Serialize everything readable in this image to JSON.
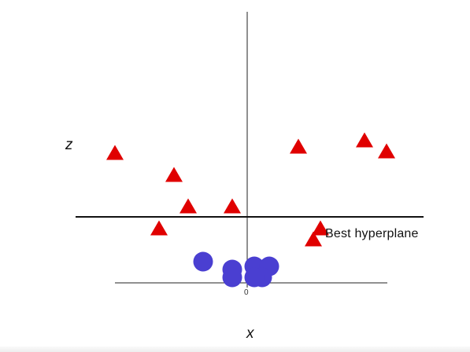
{
  "labels": {
    "z_axis": "z",
    "x_axis": "x",
    "hyperplane": "Best hyperplane",
    "origin_tick": "0"
  },
  "colors": {
    "triangle": "#e00000",
    "circle": "#4a3fd1",
    "axis": "#222222",
    "hyperplane": "#111111"
  },
  "chart_data": {
    "type": "scatter",
    "series": [
      {
        "shape": "triangle",
        "points": [
          [
            -168,
            166
          ],
          [
            -93,
            138
          ],
          [
            -75,
            98
          ],
          [
            -19,
            98
          ],
          [
            -112,
            70
          ],
          [
            65,
            174
          ],
          [
            149,
            182
          ],
          [
            177,
            168
          ],
          [
            93,
            70
          ],
          [
            84,
            56
          ]
        ]
      },
      {
        "shape": "circle",
        "points": [
          [
            -56,
            27
          ],
          [
            -19,
            17
          ],
          [
            -19,
            7
          ],
          [
            9,
            21
          ],
          [
            28,
            21
          ],
          [
            19,
            7
          ],
          [
            9,
            7
          ]
        ]
      }
    ],
    "hyperplane_z": 84
  }
}
